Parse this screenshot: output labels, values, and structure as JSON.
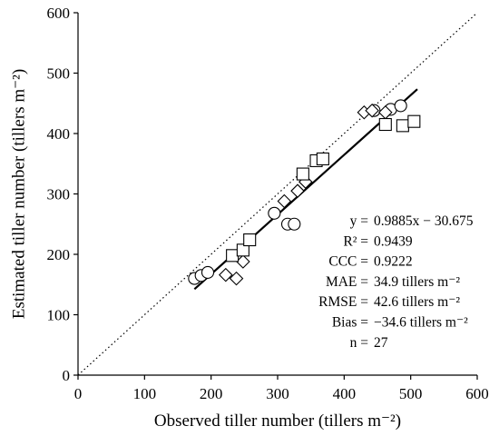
{
  "chart_data": {
    "type": "scatter",
    "xlabel": "Observed tiller number (tillers m⁻²)",
    "ylabel": "Estimated tiller number (tillers m⁻²)",
    "xlim": [
      0,
      600
    ],
    "ylim": [
      0,
      600
    ],
    "x_ticks": [
      "0",
      "100",
      "200",
      "300",
      "400",
      "500",
      "600"
    ],
    "y_ticks": [
      "0",
      "100",
      "200",
      "300",
      "400",
      "500",
      "600"
    ],
    "grid": false,
    "legend": "none",
    "reference_line": {
      "style": "dotted",
      "from": [
        0,
        0
      ],
      "to": [
        600,
        600
      ]
    },
    "fit_line": {
      "slope": 0.9885,
      "intercept": -30.675,
      "x_range": [
        175,
        510
      ]
    },
    "series": [
      {
        "marker": "circle",
        "points": [
          [
            175,
            160
          ],
          [
            185,
            165
          ],
          [
            195,
            170
          ],
          [
            295,
            268
          ],
          [
            315,
            250
          ],
          [
            325,
            250
          ],
          [
            445,
            438
          ],
          [
            470,
            440
          ],
          [
            485,
            446
          ]
        ]
      },
      {
        "marker": "diamond",
        "points": [
          [
            222,
            166
          ],
          [
            238,
            160
          ],
          [
            248,
            188
          ],
          [
            310,
            288
          ],
          [
            330,
            305
          ],
          [
            342,
            320
          ],
          [
            430,
            435
          ],
          [
            442,
            438
          ],
          [
            462,
            435
          ]
        ]
      },
      {
        "marker": "square",
        "points": [
          [
            232,
            198
          ],
          [
            248,
            207
          ],
          [
            258,
            224
          ],
          [
            338,
            333
          ],
          [
            358,
            355
          ],
          [
            368,
            358
          ],
          [
            462,
            415
          ],
          [
            488,
            413
          ],
          [
            505,
            420
          ]
        ]
      }
    ],
    "annotations": [
      {
        "label": "y =",
        "value": "0.9885x − 30.675"
      },
      {
        "label": "R² =",
        "value": "0.9439"
      },
      {
        "label": "CCC =",
        "value": "0.9222"
      },
      {
        "label": "MAE =",
        "value": "34.9 tillers m⁻²"
      },
      {
        "label": "RMSE =",
        "value": "42.6 tillers m⁻²"
      },
      {
        "label": "Bias =",
        "value": "−34.6 tillers m⁻²"
      },
      {
        "label": "n =",
        "value": "27"
      }
    ]
  }
}
